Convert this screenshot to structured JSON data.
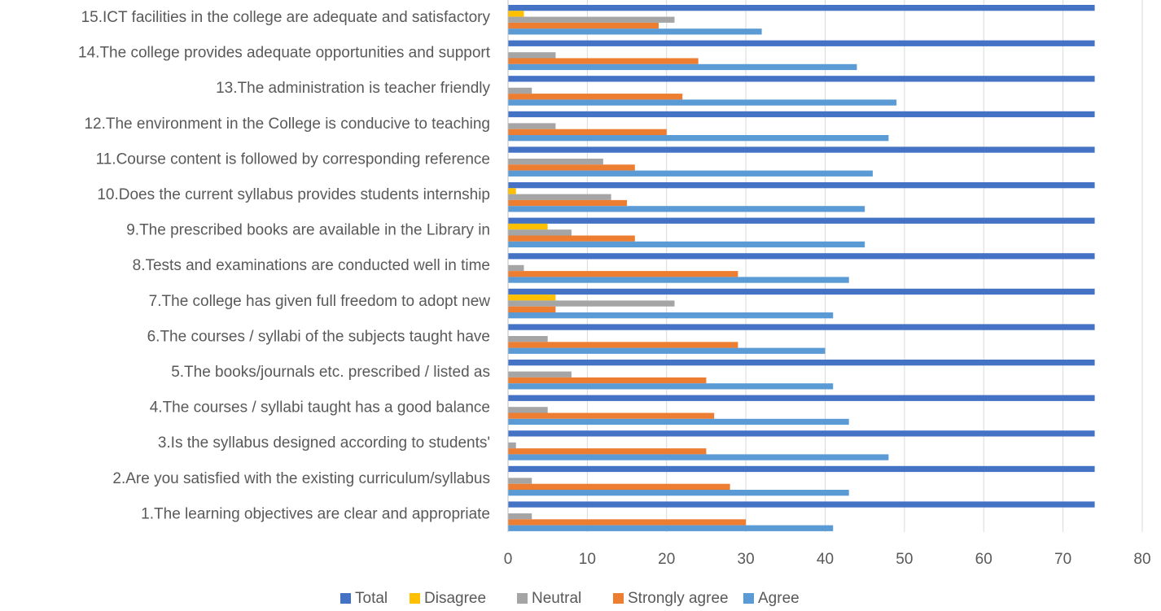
{
  "chart_data": {
    "type": "bar",
    "orientation": "horizontal",
    "categories": [
      "1.The learning objectives are clear and appropriate",
      "2.Are you satisfied with the existing curriculum/syllabus",
      "3.Is the syllabus designed according to students'",
      "4.The courses / syllabi taught has a good balance",
      "5.The books/journals etc. prescribed / listed as",
      "6.The courses / syllabi of the subjects taught have",
      "7.The college has given  full freedom to adopt new",
      "8.Tests and examinations are conducted well in time",
      "9.The prescribed books are available in the Library in",
      "10.Does the current syllabus provides students internship",
      "11.Course content is followed by corresponding reference",
      "12.The environment in the College is conducive to teaching",
      "13.The administration is teacher friendly",
      "14.The college provides adequate opportunities and support",
      "15.ICT facilities in the college are adequate and satisfactory"
    ],
    "series": [
      {
        "name": "Total",
        "color": "#4472C4",
        "values": [
          74,
          74,
          74,
          74,
          74,
          74,
          74,
          74,
          74,
          74,
          74,
          74,
          74,
          74,
          74
        ]
      },
      {
        "name": "Disagree",
        "color": "#FFC000",
        "values": [
          0,
          0,
          0,
          0,
          0,
          0,
          6,
          0,
          5,
          1,
          0,
          0,
          0,
          0,
          2
        ]
      },
      {
        "name": "Neutral",
        "color": "#A5A5A5",
        "values": [
          3,
          3,
          1,
          5,
          8,
          5,
          21,
          2,
          8,
          13,
          12,
          6,
          3,
          6,
          21
        ]
      },
      {
        "name": "Strongly agree",
        "color": "#ED7D31",
        "values": [
          30,
          28,
          25,
          26,
          25,
          29,
          6,
          29,
          16,
          15,
          16,
          20,
          22,
          24,
          19
        ]
      },
      {
        "name": "Agree",
        "color": "#5B9BD5",
        "values": [
          41,
          43,
          48,
          43,
          41,
          40,
          41,
          43,
          45,
          45,
          46,
          48,
          49,
          44,
          32
        ]
      }
    ],
    "xlim": [
      0,
      80
    ],
    "ticks": [
      "0",
      "10",
      "20",
      "30",
      "40",
      "50",
      "60",
      "70",
      "80"
    ],
    "grid": true,
    "legend_position": "bottom"
  }
}
